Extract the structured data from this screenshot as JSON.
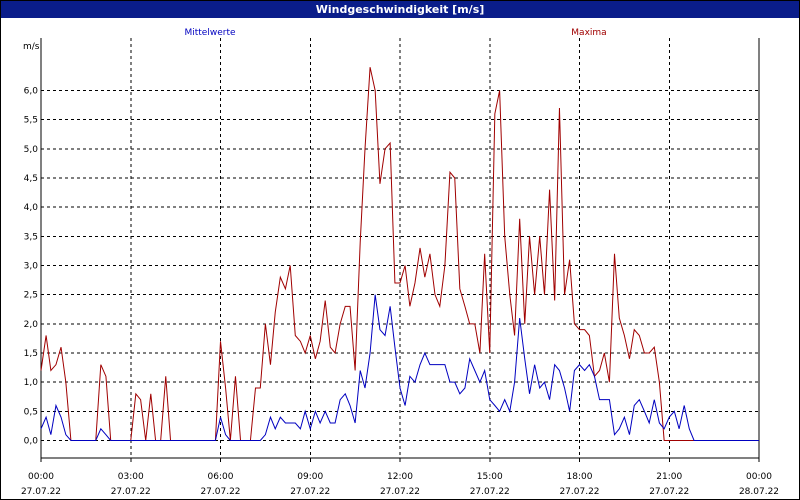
{
  "window": {
    "title": "Windgeschwindigkeit [m/s]"
  },
  "colors": {
    "title_bar": "#0a1d8a",
    "mean": "#0000c0",
    "max": "#a00000",
    "grid": "#000000"
  },
  "chart_data": {
    "type": "line",
    "title": "Windgeschwindigkeit [m/s]",
    "ylabel": "m/s",
    "xlabel": "",
    "ylim": [
      -0.3,
      6.9
    ],
    "yticks": [
      0.0,
      0.5,
      1.0,
      1.5,
      2.0,
      2.5,
      3.0,
      3.5,
      4.0,
      4.5,
      5.0,
      5.5,
      6.0
    ],
    "ytick_labels": [
      "0,0",
      "0,5",
      "1,0",
      "1,5",
      "2,0",
      "2,5",
      "3,0",
      "3,5",
      "4,0",
      "4,5",
      "5,0",
      "5,5",
      "6,0"
    ],
    "xlim_hours": [
      0,
      24
    ],
    "xticks": [
      {
        "time": "00:00",
        "date": "27.07.22"
      },
      {
        "time": "03:00",
        "date": "27.07.22"
      },
      {
        "time": "06:00",
        "date": "27.07.22"
      },
      {
        "time": "09:00",
        "date": "27.07.22"
      },
      {
        "time": "12:00",
        "date": "27.07.22"
      },
      {
        "time": "15:00",
        "date": "27.07.22"
      },
      {
        "time": "18:00",
        "date": "27.07.22"
      },
      {
        "time": "21:00",
        "date": "27.07.22"
      },
      {
        "time": "00:00",
        "date": "28.07.22"
      }
    ],
    "grid": true,
    "grid_style": "dashed",
    "series": [
      {
        "name": "Mittelwerte",
        "color": "#0000c0",
        "legend_position": "top-left",
        "points": [
          [
            0.0,
            0.2
          ],
          [
            0.17,
            0.4
          ],
          [
            0.33,
            0.1
          ],
          [
            0.5,
            0.6
          ],
          [
            0.67,
            0.4
          ],
          [
            0.83,
            0.1
          ],
          [
            1.0,
            0.0
          ],
          [
            1.5,
            0.0
          ],
          [
            1.83,
            0.0
          ],
          [
            2.0,
            0.2
          ],
          [
            2.17,
            0.1
          ],
          [
            2.33,
            0.0
          ],
          [
            5.83,
            0.0
          ],
          [
            6.0,
            0.4
          ],
          [
            6.17,
            0.1
          ],
          [
            6.33,
            0.0
          ],
          [
            7.33,
            0.0
          ],
          [
            7.5,
            0.1
          ],
          [
            7.67,
            0.4
          ],
          [
            7.83,
            0.2
          ],
          [
            8.0,
            0.4
          ],
          [
            8.17,
            0.3
          ],
          [
            8.33,
            0.3
          ],
          [
            8.5,
            0.3
          ],
          [
            8.67,
            0.2
          ],
          [
            8.83,
            0.5
          ],
          [
            9.0,
            0.2
          ],
          [
            9.17,
            0.5
          ],
          [
            9.33,
            0.3
          ],
          [
            9.5,
            0.5
          ],
          [
            9.67,
            0.3
          ],
          [
            9.83,
            0.3
          ],
          [
            10.0,
            0.7
          ],
          [
            10.17,
            0.8
          ],
          [
            10.33,
            0.6
          ],
          [
            10.5,
            0.3
          ],
          [
            10.67,
            1.2
          ],
          [
            10.83,
            0.9
          ],
          [
            11.0,
            1.5
          ],
          [
            11.17,
            2.5
          ],
          [
            11.33,
            1.9
          ],
          [
            11.5,
            1.8
          ],
          [
            11.67,
            2.3
          ],
          [
            11.83,
            1.6
          ],
          [
            12.0,
            0.9
          ],
          [
            12.17,
            0.6
          ],
          [
            12.33,
            1.1
          ],
          [
            12.5,
            1.0
          ],
          [
            12.67,
            1.3
          ],
          [
            12.83,
            1.5
          ],
          [
            13.0,
            1.3
          ],
          [
            13.17,
            1.3
          ],
          [
            13.33,
            1.3
          ],
          [
            13.5,
            1.3
          ],
          [
            13.67,
            1.0
          ],
          [
            13.83,
            1.0
          ],
          [
            14.0,
            0.8
          ],
          [
            14.17,
            0.9
          ],
          [
            14.33,
            1.4
          ],
          [
            14.5,
            1.2
          ],
          [
            14.67,
            1.0
          ],
          [
            14.83,
            1.2
          ],
          [
            15.0,
            0.7
          ],
          [
            15.17,
            0.6
          ],
          [
            15.33,
            0.5
          ],
          [
            15.5,
            0.7
          ],
          [
            15.67,
            0.5
          ],
          [
            15.83,
            1.0
          ],
          [
            16.0,
            2.1
          ],
          [
            16.17,
            1.4
          ],
          [
            16.33,
            0.8
          ],
          [
            16.5,
            1.3
          ],
          [
            16.67,
            0.9
          ],
          [
            16.83,
            1.0
          ],
          [
            17.0,
            0.7
          ],
          [
            17.17,
            1.3
          ],
          [
            17.33,
            1.2
          ],
          [
            17.5,
            0.9
          ],
          [
            17.67,
            0.5
          ],
          [
            17.83,
            1.2
          ],
          [
            18.0,
            1.3
          ],
          [
            18.17,
            1.2
          ],
          [
            18.33,
            1.3
          ],
          [
            18.5,
            1.1
          ],
          [
            18.67,
            0.7
          ],
          [
            18.83,
            0.7
          ],
          [
            19.0,
            0.7
          ],
          [
            19.17,
            0.1
          ],
          [
            19.33,
            0.2
          ],
          [
            19.5,
            0.4
          ],
          [
            19.67,
            0.1
          ],
          [
            19.83,
            0.6
          ],
          [
            20.0,
            0.7
          ],
          [
            20.17,
            0.5
          ],
          [
            20.33,
            0.3
          ],
          [
            20.5,
            0.7
          ],
          [
            20.67,
            0.3
          ],
          [
            20.83,
            0.2
          ],
          [
            21.0,
            0.4
          ],
          [
            21.17,
            0.5
          ],
          [
            21.33,
            0.2
          ],
          [
            21.5,
            0.6
          ],
          [
            21.67,
            0.2
          ],
          [
            21.83,
            0.0
          ],
          [
            24.0,
            0.0
          ]
        ]
      },
      {
        "name": "Maxima",
        "color": "#a00000",
        "legend_position": "top-right",
        "points": [
          [
            0.0,
            1.2
          ],
          [
            0.17,
            1.8
          ],
          [
            0.33,
            1.2
          ],
          [
            0.5,
            1.3
          ],
          [
            0.67,
            1.6
          ],
          [
            0.83,
            1.0
          ],
          [
            1.0,
            0.0
          ],
          [
            1.83,
            0.0
          ],
          [
            2.0,
            1.3
          ],
          [
            2.17,
            1.1
          ],
          [
            2.33,
            0.0
          ],
          [
            3.0,
            0.0
          ],
          [
            3.17,
            0.8
          ],
          [
            3.33,
            0.7
          ],
          [
            3.5,
            0.0
          ],
          [
            3.67,
            0.8
          ],
          [
            3.83,
            0.0
          ],
          [
            4.0,
            0.0
          ],
          [
            4.17,
            1.1
          ],
          [
            4.33,
            0.0
          ],
          [
            5.83,
            0.0
          ],
          [
            6.0,
            1.7
          ],
          [
            6.17,
            0.9
          ],
          [
            6.33,
            0.0
          ],
          [
            6.5,
            1.1
          ],
          [
            6.67,
            0.0
          ],
          [
            7.0,
            0.0
          ],
          [
            7.17,
            0.9
          ],
          [
            7.33,
            0.9
          ],
          [
            7.5,
            2.0
          ],
          [
            7.67,
            1.3
          ],
          [
            7.83,
            2.2
          ],
          [
            8.0,
            2.8
          ],
          [
            8.17,
            2.6
          ],
          [
            8.33,
            3.0
          ],
          [
            8.5,
            1.8
          ],
          [
            8.67,
            1.7
          ],
          [
            8.83,
            1.5
          ],
          [
            9.0,
            1.8
          ],
          [
            9.17,
            1.4
          ],
          [
            9.33,
            1.7
          ],
          [
            9.5,
            2.4
          ],
          [
            9.67,
            1.6
          ],
          [
            9.83,
            1.5
          ],
          [
            10.0,
            2.0
          ],
          [
            10.17,
            2.3
          ],
          [
            10.33,
            2.3
          ],
          [
            10.5,
            1.2
          ],
          [
            10.67,
            3.4
          ],
          [
            10.83,
            5.0
          ],
          [
            11.0,
            6.4
          ],
          [
            11.17,
            6.0
          ],
          [
            11.33,
            4.4
          ],
          [
            11.5,
            5.0
          ],
          [
            11.67,
            5.1
          ],
          [
            11.83,
            2.7
          ],
          [
            12.0,
            2.7
          ],
          [
            12.17,
            3.0
          ],
          [
            12.33,
            2.3
          ],
          [
            12.5,
            2.7
          ],
          [
            12.67,
            3.3
          ],
          [
            12.83,
            2.8
          ],
          [
            13.0,
            3.2
          ],
          [
            13.17,
            2.5
          ],
          [
            13.33,
            2.3
          ],
          [
            13.5,
            3.0
          ],
          [
            13.67,
            4.6
          ],
          [
            13.83,
            4.5
          ],
          [
            14.0,
            2.6
          ],
          [
            14.17,
            2.3
          ],
          [
            14.33,
            2.0
          ],
          [
            14.5,
            2.0
          ],
          [
            14.67,
            1.5
          ],
          [
            14.83,
            3.2
          ],
          [
            15.0,
            1.5
          ],
          [
            15.17,
            5.6
          ],
          [
            15.33,
            6.0
          ],
          [
            15.5,
            3.5
          ],
          [
            15.67,
            2.5
          ],
          [
            15.83,
            1.8
          ],
          [
            16.0,
            3.8
          ],
          [
            16.17,
            2.0
          ],
          [
            16.33,
            3.5
          ],
          [
            16.5,
            2.5
          ],
          [
            16.67,
            3.5
          ],
          [
            16.83,
            2.5
          ],
          [
            17.0,
            4.3
          ],
          [
            17.17,
            2.4
          ],
          [
            17.33,
            5.7
          ],
          [
            17.5,
            2.5
          ],
          [
            17.67,
            3.1
          ],
          [
            17.83,
            2.0
          ],
          [
            18.0,
            1.9
          ],
          [
            18.17,
            1.9
          ],
          [
            18.33,
            1.8
          ],
          [
            18.5,
            1.1
          ],
          [
            18.67,
            1.2
          ],
          [
            18.83,
            1.5
          ],
          [
            19.0,
            1.0
          ],
          [
            19.17,
            3.2
          ],
          [
            19.33,
            2.1
          ],
          [
            19.5,
            1.8
          ],
          [
            19.67,
            1.4
          ],
          [
            19.83,
            1.9
          ],
          [
            20.0,
            1.8
          ],
          [
            20.17,
            1.5
          ],
          [
            20.33,
            1.5
          ],
          [
            20.5,
            1.6
          ],
          [
            20.67,
            1.0
          ],
          [
            20.83,
            0.0
          ],
          [
            24.0,
            0.0
          ]
        ]
      }
    ]
  }
}
